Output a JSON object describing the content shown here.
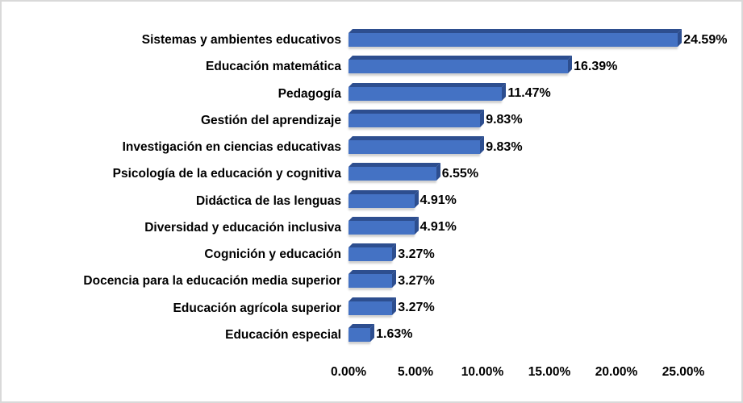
{
  "figure": {
    "background": "#FFFFFF",
    "border_color": "#D9D9D9"
  },
  "chart_data": {
    "type": "bar",
    "orientation": "horizontal",
    "style": "3d",
    "title": "",
    "xlabel": "",
    "ylabel": "",
    "legend": false,
    "grid": false,
    "xlim": [
      0,
      25
    ],
    "x_tick_labels": [
      "0.00%",
      "5.00%",
      "10.00%",
      "15.00%",
      "20.00%",
      "25.00%"
    ],
    "x_tick_values": [
      0,
      5,
      10,
      15,
      20,
      25
    ],
    "categories": [
      "Sistemas y ambientes educativos",
      "Educación matemática",
      "Pedagogía",
      "Gestión del aprendizaje",
      "Investigación en ciencias educativas",
      "Psicología de la educación y cognitiva",
      "Didáctica de las lenguas",
      "Diversidad y educación inclusiva",
      "Cognición y educación",
      "Docencia para la educación media superior",
      "Educación agrícola superior",
      "Educación especial"
    ],
    "values": [
      24.59,
      16.39,
      11.47,
      9.83,
      9.83,
      6.55,
      4.91,
      4.91,
      3.27,
      3.27,
      3.27,
      1.63
    ],
    "value_labels": [
      "24.59%",
      "16.39%",
      "11.47%",
      "9.83%",
      "9.83%",
      "6.55%",
      "4.91%",
      "4.91%",
      "3.27%",
      "3.27%",
      "3.27%",
      "1.63%"
    ],
    "bar_color": "#4472C4",
    "bar_side_color": "#2D4E8F",
    "text_color": "#000000"
  }
}
